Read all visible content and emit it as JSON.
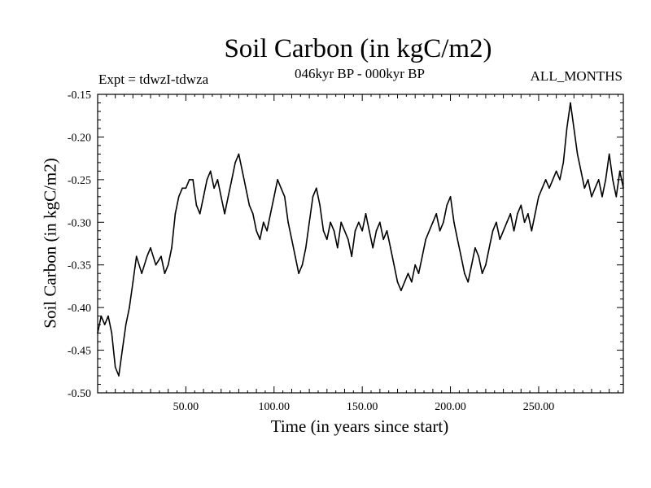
{
  "chart_data": {
    "type": "line",
    "title": "Soil Carbon (in kgC/m2)",
    "subtitle_left": "Expt = tdwzI-tdwza",
    "subtitle_center": "046kyr BP - 000kyr BP",
    "subtitle_right": "ALL_MONTHS",
    "xlabel": "Time (in years since start)",
    "ylabel": "Soil Carbon (in kgC/m2)",
    "xlim": [
      0,
      298
    ],
    "ylim": [
      -0.5,
      -0.15
    ],
    "xticks": [
      {
        "value": 50,
        "label": "50.00"
      },
      {
        "value": 100,
        "label": "100.00"
      },
      {
        "value": 150,
        "label": "150.00"
      },
      {
        "value": 200,
        "label": "200.00"
      },
      {
        "value": 250,
        "label": "250.00"
      }
    ],
    "yticks": [
      {
        "value": -0.15,
        "label": "-0.15"
      },
      {
        "value": -0.2,
        "label": "-0.20"
      },
      {
        "value": -0.25,
        "label": "-0.25"
      },
      {
        "value": -0.3,
        "label": "-0.30"
      },
      {
        "value": -0.35,
        "label": "-0.35"
      },
      {
        "value": -0.4,
        "label": "-0.40"
      },
      {
        "value": -0.45,
        "label": "-0.45"
      },
      {
        "value": -0.5,
        "label": "-0.50"
      }
    ],
    "grid": false,
    "line_color": "#000000",
    "series": [
      {
        "x": [
          0,
          2,
          4,
          6,
          8,
          10,
          12,
          14,
          16,
          18,
          20,
          22,
          25,
          28,
          30,
          33,
          36,
          38,
          40,
          42,
          44,
          46,
          48,
          50,
          52,
          54,
          56,
          58,
          60,
          62,
          64,
          66,
          68,
          70,
          72,
          74,
          76,
          78,
          80,
          82,
          84,
          86,
          88,
          90,
          92,
          94,
          96,
          98,
          100,
          102,
          104,
          106,
          108,
          110,
          112,
          114,
          116,
          118,
          120,
          122,
          124,
          126,
          128,
          130,
          132,
          134,
          136,
          138,
          140,
          142,
          144,
          146,
          148,
          150,
          152,
          154,
          156,
          158,
          160,
          162,
          164,
          166,
          168,
          170,
          172,
          174,
          176,
          178,
          180,
          182,
          184,
          186,
          188,
          190,
          192,
          194,
          196,
          198,
          200,
          202,
          204,
          206,
          208,
          210,
          212,
          214,
          216,
          218,
          220,
          222,
          224,
          226,
          228,
          230,
          232,
          234,
          236,
          238,
          240,
          242,
          244,
          246,
          248,
          250,
          252,
          254,
          256,
          258,
          260,
          262,
          264,
          266,
          268,
          270,
          272,
          274,
          276,
          278,
          280,
          282,
          284,
          286,
          288,
          290,
          292,
          294,
          296,
          298
        ],
        "y": [
          -0.43,
          -0.41,
          -0.42,
          -0.41,
          -0.43,
          -0.47,
          -0.48,
          -0.45,
          -0.42,
          -0.4,
          -0.37,
          -0.34,
          -0.36,
          -0.34,
          -0.33,
          -0.35,
          -0.34,
          -0.36,
          -0.35,
          -0.33,
          -0.29,
          -0.27,
          -0.26,
          -0.26,
          -0.25,
          -0.25,
          -0.28,
          -0.29,
          -0.27,
          -0.25,
          -0.24,
          -0.26,
          -0.25,
          -0.27,
          -0.29,
          -0.27,
          -0.25,
          -0.23,
          -0.22,
          -0.24,
          -0.26,
          -0.28,
          -0.29,
          -0.31,
          -0.32,
          -0.3,
          -0.31,
          -0.29,
          -0.27,
          -0.25,
          -0.26,
          -0.27,
          -0.3,
          -0.32,
          -0.34,
          -0.36,
          -0.35,
          -0.33,
          -0.3,
          -0.27,
          -0.26,
          -0.28,
          -0.31,
          -0.32,
          -0.3,
          -0.31,
          -0.33,
          -0.3,
          -0.31,
          -0.32,
          -0.34,
          -0.31,
          -0.3,
          -0.31,
          -0.29,
          -0.31,
          -0.33,
          -0.31,
          -0.3,
          -0.32,
          -0.31,
          -0.33,
          -0.35,
          -0.37,
          -0.38,
          -0.37,
          -0.36,
          -0.37,
          -0.35,
          -0.36,
          -0.34,
          -0.32,
          -0.31,
          -0.3,
          -0.29,
          -0.31,
          -0.3,
          -0.28,
          -0.27,
          -0.3,
          -0.32,
          -0.34,
          -0.36,
          -0.37,
          -0.35,
          -0.33,
          -0.34,
          -0.36,
          -0.35,
          -0.33,
          -0.31,
          -0.3,
          -0.32,
          -0.31,
          -0.3,
          -0.29,
          -0.31,
          -0.29,
          -0.28,
          -0.3,
          -0.29,
          -0.31,
          -0.29,
          -0.27,
          -0.26,
          -0.25,
          -0.26,
          -0.25,
          -0.24,
          -0.25,
          -0.23,
          -0.19,
          -0.16,
          -0.19,
          -0.22,
          -0.24,
          -0.26,
          -0.25,
          -0.27,
          -0.26,
          -0.25,
          -0.27,
          -0.25,
          -0.22,
          -0.25,
          -0.27,
          -0.24,
          -0.26
        ]
      }
    ]
  }
}
